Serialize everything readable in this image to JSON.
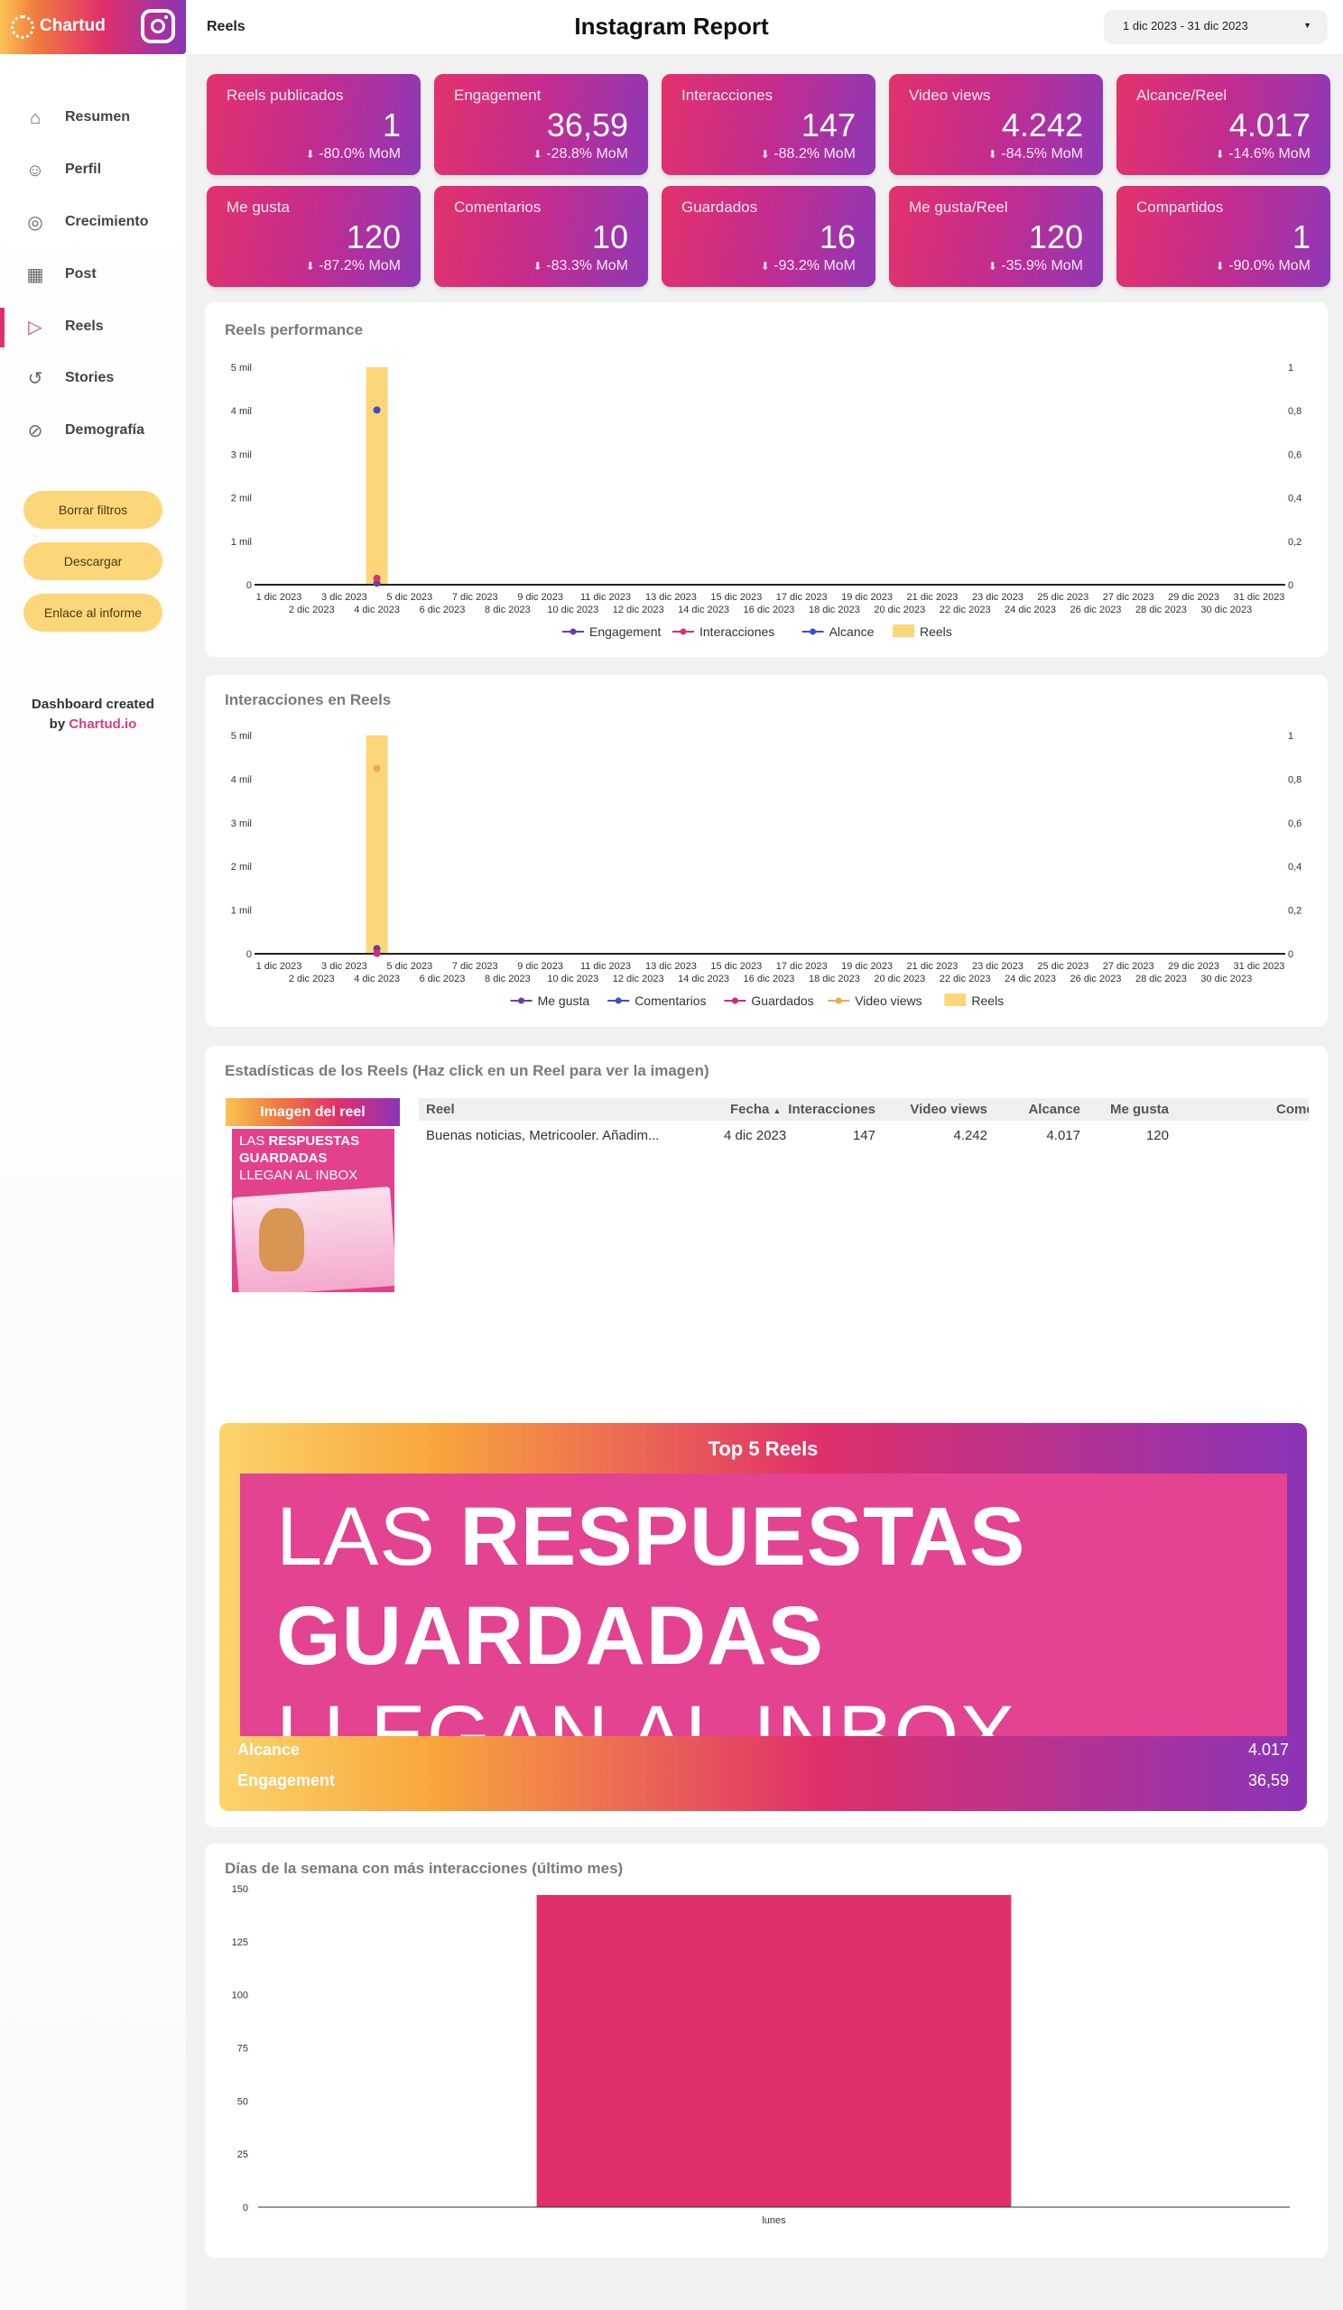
{
  "header": {
    "logo_text": "Chartud",
    "section": "Reels",
    "title": "Instagram Report",
    "date_range": "1 dic 2023 - 31 dic 2023"
  },
  "sidebar": {
    "items": [
      {
        "label": "Resumen",
        "icon": "home-icon"
      },
      {
        "label": "Perfil",
        "icon": "user-icon"
      },
      {
        "label": "Crecimiento",
        "icon": "user-growth-icon"
      },
      {
        "label": "Post",
        "icon": "grid-icon"
      },
      {
        "label": "Reels",
        "icon": "video-icon",
        "active": true
      },
      {
        "label": "Stories",
        "icon": "history-icon"
      },
      {
        "label": "Demografía",
        "icon": "compass-icon"
      }
    ],
    "buttons": [
      "Borrar filtros",
      "Descargar",
      "Enlace al informe"
    ],
    "credit_line1": "Dashboard created",
    "credit_by": "by",
    "credit_brand": "Chartud.io"
  },
  "kpis": [
    {
      "label": "Reels publicados",
      "value": "1",
      "mom": "-80.0% MoM"
    },
    {
      "label": "Engagement",
      "value": "36,59",
      "mom": "-28.8% MoM"
    },
    {
      "label": "Interacciones",
      "value": "147",
      "mom": "-88.2% MoM"
    },
    {
      "label": "Video views",
      "value": "4.242",
      "mom": "-84.5% MoM"
    },
    {
      "label": "Alcance/Reel",
      "value": "4.017",
      "mom": "-14.6% MoM"
    },
    {
      "label": "Me gusta",
      "value": "120",
      "mom": "-87.2% MoM"
    },
    {
      "label": "Comentarios",
      "value": "10",
      "mom": "-83.3% MoM"
    },
    {
      "label": "Guardados",
      "value": "16",
      "mom": "-93.2% MoM"
    },
    {
      "label": "Me gusta/Reel",
      "value": "120",
      "mom": "-35.9% MoM"
    },
    {
      "label": "Compartidos",
      "value": "1",
      "mom": "-90.0% MoM"
    }
  ],
  "colors": {
    "accent": "#e0306a",
    "purple": "#8a34b8",
    "yellow": "#fcd77a"
  },
  "chart_data": [
    {
      "type": "line",
      "title": "Reels performance",
      "x": [
        "1 dic 2023",
        "2 dic 2023",
        "3 dic 2023",
        "4 dic 2023",
        "5 dic 2023",
        "6 dic 2023",
        "7 dic 2023",
        "8 dic 2023",
        "9 dic 2023",
        "10 dic 2023",
        "11 dic 2023",
        "12 dic 2023",
        "13 dic 2023",
        "14 dic 2023",
        "15 dic 2023",
        "16 dic 2023",
        "17 dic 2023",
        "18 dic 2023",
        "19 dic 2023",
        "20 dic 2023",
        "21 dic 2023",
        "22 dic 2023",
        "23 dic 2023",
        "24 dic 2023",
        "25 dic 2023",
        "26 dic 2023",
        "27 dic 2023",
        "28 dic 2023",
        "29 dic 2023",
        "30 dic 2023",
        "31 dic 2023"
      ],
      "y_left": {
        "ticks": [
          "0",
          "1 mil",
          "2 mil",
          "3 mil",
          "4 mil",
          "5 mil"
        ],
        "range": [
          0,
          5000
        ]
      },
      "y_right": {
        "ticks": [
          "0",
          "0,2",
          "0,4",
          "0,6",
          "0,8",
          "1"
        ],
        "range": [
          0,
          1
        ]
      },
      "legend_position": "bottom",
      "series": [
        {
          "name": "Engagement",
          "kind": "line",
          "axis": "left",
          "color": "#6b3fa0",
          "points": [
            {
              "x": "4 dic 2023",
              "y": 36.59
            }
          ]
        },
        {
          "name": "Interacciones",
          "kind": "line",
          "axis": "left",
          "color": "#d6336c",
          "points": [
            {
              "x": "4 dic 2023",
              "y": 147
            }
          ]
        },
        {
          "name": "Alcance",
          "kind": "line",
          "axis": "left",
          "color": "#3b4fc4",
          "points": [
            {
              "x": "4 dic 2023",
              "y": 4017
            }
          ]
        },
        {
          "name": "Reels",
          "kind": "bar",
          "axis": "right",
          "color": "#fcd77a",
          "points": [
            {
              "x": "4 dic 2023",
              "y": 1
            }
          ]
        }
      ]
    },
    {
      "type": "line",
      "title": "Interacciones en Reels",
      "x": [
        "1 dic 2023",
        "2 dic 2023",
        "3 dic 2023",
        "4 dic 2023",
        "5 dic 2023",
        "6 dic 2023",
        "7 dic 2023",
        "8 dic 2023",
        "9 dic 2023",
        "10 dic 2023",
        "11 dic 2023",
        "12 dic 2023",
        "13 dic 2023",
        "14 dic 2023",
        "15 dic 2023",
        "16 dic 2023",
        "17 dic 2023",
        "18 dic 2023",
        "19 dic 2023",
        "20 dic 2023",
        "21 dic 2023",
        "22 dic 2023",
        "23 dic 2023",
        "24 dic 2023",
        "25 dic 2023",
        "26 dic 2023",
        "27 dic 2023",
        "28 dic 2023",
        "29 dic 2023",
        "30 dic 2023",
        "31 dic 2023"
      ],
      "y_left": {
        "ticks": [
          "0",
          "1 mil",
          "2 mil",
          "3 mil",
          "4 mil",
          "5 mil"
        ],
        "range": [
          0,
          5000
        ]
      },
      "y_right": {
        "ticks": [
          "0",
          "0,2",
          "0,4",
          "0,6",
          "0,8",
          "1"
        ],
        "range": [
          0,
          1
        ]
      },
      "legend_position": "bottom",
      "series": [
        {
          "name": "Me gusta",
          "kind": "line",
          "axis": "left",
          "color": "#6b3fa0",
          "points": [
            {
              "x": "4 dic 2023",
              "y": 120
            }
          ]
        },
        {
          "name": "Comentarios",
          "kind": "line",
          "axis": "left",
          "color": "#3b4fc4",
          "points": [
            {
              "x": "4 dic 2023",
              "y": 10
            }
          ]
        },
        {
          "name": "Guardados",
          "kind": "line",
          "axis": "left",
          "color": "#d6267f",
          "points": [
            {
              "x": "4 dic 2023",
              "y": 16
            }
          ]
        },
        {
          "name": "Video views",
          "kind": "line",
          "axis": "left",
          "color": "#f0a94a",
          "points": [
            {
              "x": "4 dic 2023",
              "y": 4242
            }
          ]
        },
        {
          "name": "Reels",
          "kind": "bar",
          "axis": "right",
          "color": "#fcd77a",
          "points": [
            {
              "x": "4 dic 2023",
              "y": 1
            }
          ]
        }
      ]
    },
    {
      "type": "bar",
      "title": "Días de la semana con más interacciones (último mes)",
      "categories": [
        "lunes"
      ],
      "values": [
        147
      ],
      "color": "#e0306a",
      "y_ticks": [
        "0",
        "25",
        "50",
        "75",
        "100",
        "125",
        "150"
      ],
      "ylim": [
        0,
        150
      ]
    }
  ],
  "reels_table": {
    "title": "Estadísticas de los Reels (Haz click en un Reel para ver la imagen)",
    "image_header": "Imagen del reel",
    "image_text": {
      "light1": "LAS",
      "bold1": "RESPUESTAS",
      "bold2": "GUARDADAS",
      "light2": "LLEGAN AL INBOX"
    },
    "columns": [
      "Reel",
      "Fecha",
      "Interacciones",
      "Video views",
      "Alcance",
      "Me gusta",
      "Come"
    ],
    "sort_indicator": "▲",
    "rows": [
      [
        "Buenas noticias, Metricooler. Añadim...",
        "4 dic 2023",
        "147",
        "4.242",
        "4.017",
        "120",
        ""
      ]
    ]
  },
  "top5": {
    "title": "Top 5 Reels",
    "image_line1_light": "LAS",
    "image_line1_bold": "RESPUESTAS",
    "image_line2": "GUARDADAS",
    "image_line3": "LLEGAN AL INBOX",
    "metrics": [
      {
        "label": "Alcance",
        "value": "4.017"
      },
      {
        "label": "Engagement",
        "value": "36,59"
      }
    ]
  }
}
